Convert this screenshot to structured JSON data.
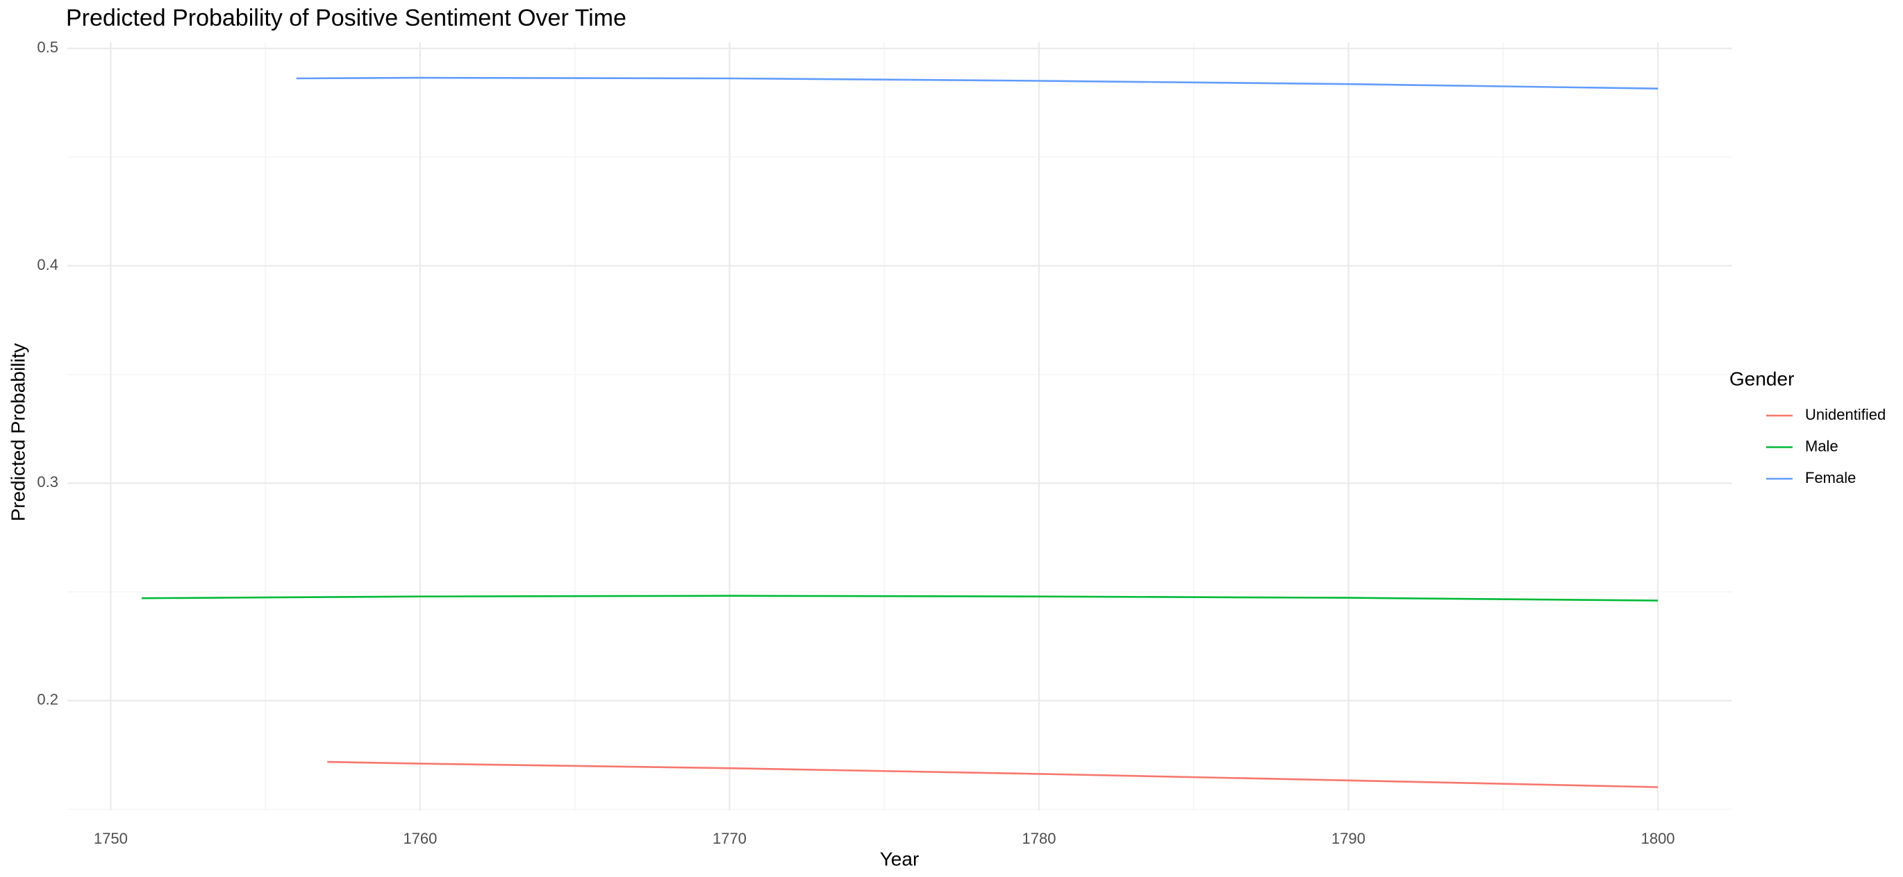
{
  "chart_data": {
    "type": "line",
    "title": "Predicted Probability of Positive Sentiment Over Time",
    "x_label": "Year",
    "y_label": "Predicted Probability",
    "legend_title": "Gender",
    "series": [
      {
        "name": "Unidentified",
        "color": "#F8766D",
        "x": [
          1757,
          1760,
          1770,
          1780,
          1790,
          1800
        ],
        "values": [
          0.1718,
          0.171,
          0.1689,
          0.1663,
          0.1633,
          0.1602
        ]
      },
      {
        "name": "Male",
        "color": "#00BA38",
        "x": [
          1751,
          1760,
          1770,
          1780,
          1790,
          1800
        ],
        "values": [
          0.2471,
          0.2479,
          0.2482,
          0.2479,
          0.2473,
          0.246
        ]
      },
      {
        "name": "Female",
        "color": "#619CFF",
        "x": [
          1756,
          1760,
          1770,
          1780,
          1790,
          1800
        ],
        "values": [
          0.4862,
          0.4865,
          0.4862,
          0.4851,
          0.4836,
          0.4815
        ]
      }
    ],
    "xlim": [
      1748.6,
      1802.4
    ],
    "xticks": [
      1750,
      1760,
      1770,
      1780,
      1790,
      1800
    ],
    "ylim": [
      0.1495,
      0.5028
    ],
    "yticks": [
      0.2,
      0.3,
      0.4,
      0.5
    ],
    "grid": true,
    "legend": "right"
  }
}
